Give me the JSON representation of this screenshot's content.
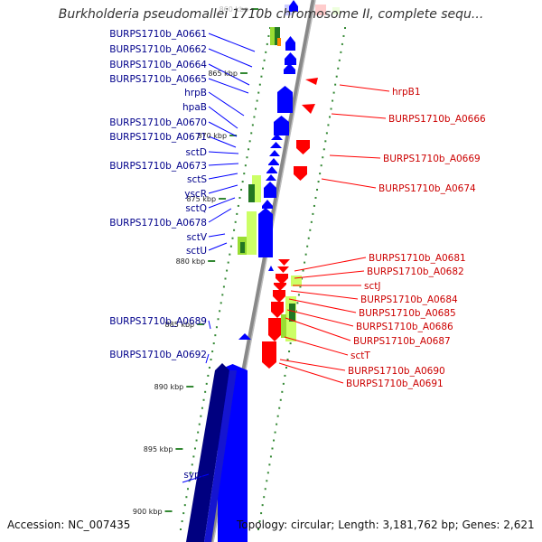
{
  "title": "Burkholderia pseudomallei 1710b chromosome II, complete sequ...",
  "footer": {
    "accession": "Accession: NC_007435",
    "topology": "Topology: circular; Length: 3,181,762 bp; Genes: 2,621"
  },
  "colors": {
    "forward_gene": "#0000ff",
    "reverse_gene": "#ff0000",
    "dark_forward_gene": "#000080",
    "forward_label": "#00008b",
    "reverse_label": "#cc0000",
    "tick": "#338833",
    "backbone": "#888888",
    "feature_light": "#ccff66",
    "feature_mid": "#99dd33",
    "feature_dark": "#227722"
  },
  "diagram": {
    "kbp_ticks": [
      {
        "label": "860 kbp",
        "faded": true
      },
      {
        "label": "865 kbp"
      },
      {
        "label": "870 kbp"
      },
      {
        "label": "875 kbp"
      },
      {
        "label": "880 kbp"
      },
      {
        "label": "885 kbp"
      },
      {
        "label": "890 kbp"
      },
      {
        "label": "895 kbp"
      },
      {
        "label": "900 kbp"
      }
    ],
    "forward_labels": [
      "BURPS1710b_A0661",
      "BURPS1710b_A0662",
      "BURPS1710b_A0664",
      "BURPS1710b_A0665",
      "hrpB",
      "hpaB",
      "BURPS1710b_A0670",
      "BURPS1710b_A0671",
      "sctD",
      "BURPS1710b_A0673",
      "sctS",
      "yscR",
      "sctQ",
      "BURPS1710b_A0678",
      "sctV",
      "sctU",
      "BURPS1710b_A0689",
      "BURPS1710b_A0692",
      "sypC"
    ],
    "reverse_labels": [
      "hrpB1",
      "BURPS1710b_A0666",
      "BURPS1710b_A0669",
      "BURPS1710b_A0674",
      "BURPS1710b_A0681",
      "BURPS1710b_A0682",
      "sctJ",
      "BURPS1710b_A0684",
      "BURPS1710b_A0685",
      "BURPS1710b_A0686",
      "BURPS1710b_A0687",
      "sctT",
      "BURPS1710b_A0690",
      "BURPS1710b_A0691"
    ]
  }
}
